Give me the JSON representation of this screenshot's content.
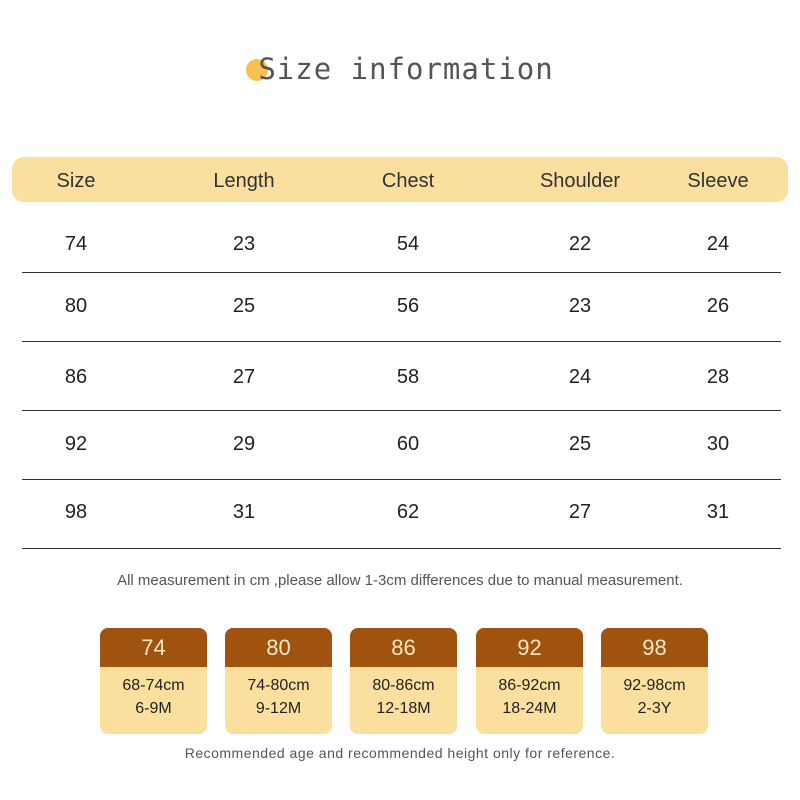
{
  "title": "Size information",
  "table": {
    "headers": [
      "Size",
      "Length",
      "Chest",
      "Shoulder",
      "Sleeve"
    ],
    "rows": [
      [
        "74",
        "23",
        "54",
        "22",
        "24"
      ],
      [
        "80",
        "25",
        "56",
        "23",
        "26"
      ],
      [
        "86",
        "27",
        "58",
        "24",
        "28"
      ],
      [
        "92",
        "29",
        "60",
        "25",
        "30"
      ],
      [
        "98",
        "31",
        "62",
        "27",
        "31"
      ]
    ]
  },
  "note": "All measurement in cm ,please allow 1-3cm differences due to manual measurement.",
  "cards": [
    {
      "size": "74",
      "height": "68-74cm",
      "age": "6-9M"
    },
    {
      "size": "80",
      "height": "74-80cm",
      "age": "9-12M"
    },
    {
      "size": "86",
      "height": "80-86cm",
      "age": "12-18M"
    },
    {
      "size": "92",
      "height": "86-92cm",
      "age": "18-24M"
    },
    {
      "size": "98",
      "height": "92-98cm",
      "age": "2-3Y"
    }
  ],
  "footer_note": "Recommended age and recommended height only for reference.",
  "colors": {
    "header_bg": "#fadf9f",
    "card_top": "#a0520f",
    "card_bg": "#fbdf9f",
    "title_dot": "#f7c050"
  }
}
